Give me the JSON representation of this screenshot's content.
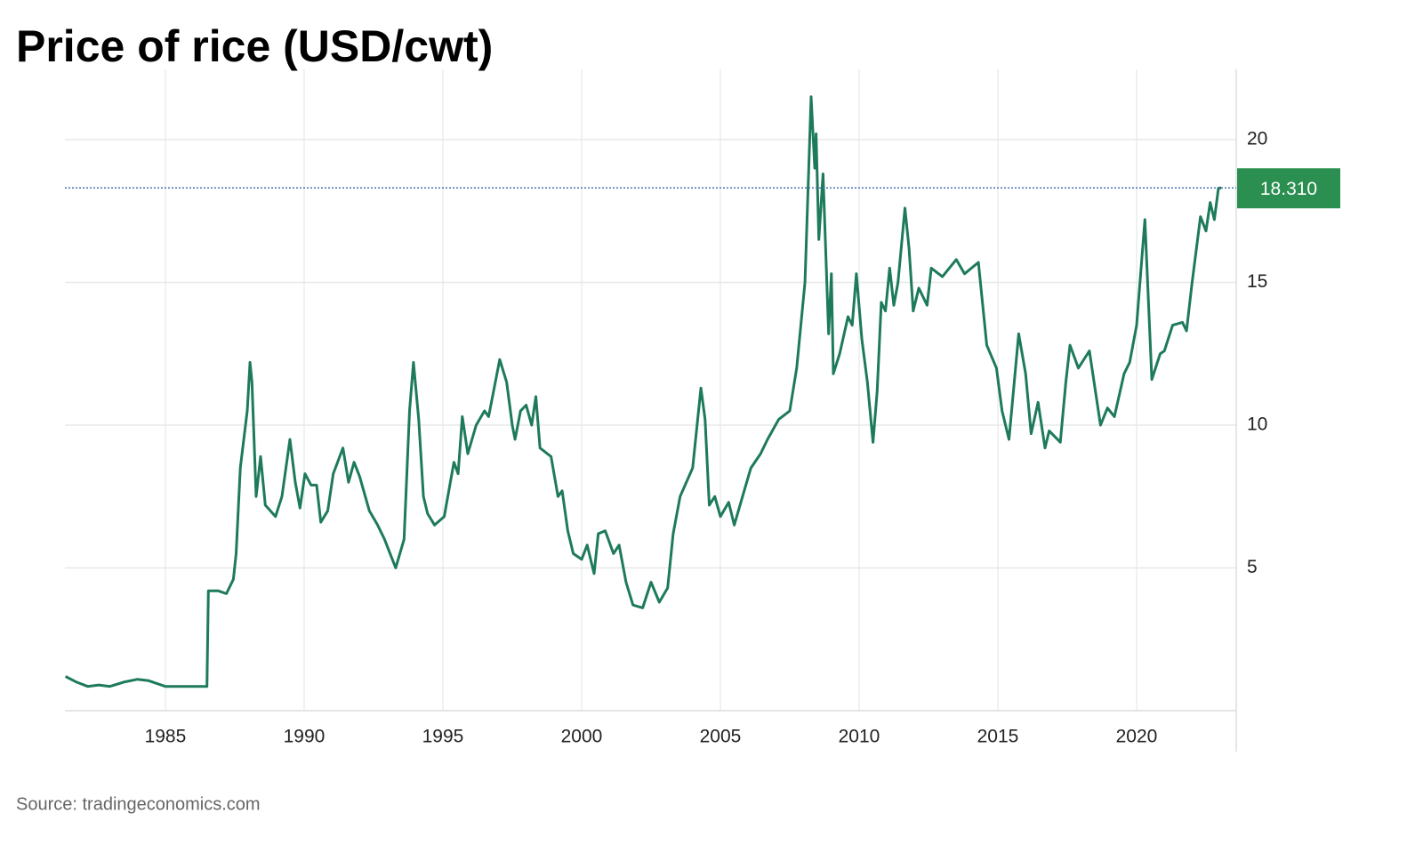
{
  "chart_data": {
    "type": "line",
    "title": "Price of rice (USD/cwt)",
    "source": "Source: tradingeconomics.com",
    "x": [
      1981.4,
      1981.8,
      1982.2,
      1982.6,
      1983.0,
      1983.5,
      1984.0,
      1984.4,
      1985.0,
      1986.5,
      1986.55,
      1986.9,
      1987.2,
      1987.45,
      1987.55,
      1987.7,
      1987.95,
      1988.05,
      1988.12,
      1988.27,
      1988.43,
      1988.6,
      1988.97,
      1989.2,
      1989.49,
      1989.68,
      1989.85,
      1990.03,
      1990.25,
      1990.45,
      1990.6,
      1990.85,
      1991.05,
      1991.4,
      1991.6,
      1991.8,
      1992.0,
      1992.35,
      1992.65,
      1992.9,
      1993.3,
      1993.6,
      1993.8,
      1993.94,
      1994.13,
      1994.3,
      1994.45,
      1994.7,
      1995.05,
      1995.4,
      1995.55,
      1995.7,
      1995.9,
      1996.2,
      1996.5,
      1996.65,
      1997.05,
      1997.3,
      1997.5,
      1997.6,
      1997.8,
      1998.0,
      1998.2,
      1998.35,
      1998.5,
      1998.9,
      1999.15,
      1999.3,
      1999.5,
      1999.7,
      2000.0,
      2000.2,
      2000.45,
      2000.6,
      2000.85,
      2001.15,
      2001.35,
      2001.6,
      2001.85,
      2002.2,
      2002.5,
      2002.8,
      2003.1,
      2003.3,
      2003.55,
      2004.0,
      2004.3,
      2004.45,
      2004.6,
      2004.8,
      2005.0,
      2005.3,
      2005.5,
      2005.8,
      2006.1,
      2006.45,
      2006.7,
      2007.1,
      2007.5,
      2007.75,
      2008.05,
      2008.27,
      2008.4,
      2008.45,
      2008.55,
      2008.7,
      2008.9,
      2009.0,
      2009.07,
      2009.3,
      2009.6,
      2009.75,
      2009.9,
      2010.1,
      2010.3,
      2010.5,
      2010.65,
      2010.8,
      2010.95,
      2011.1,
      2011.25,
      2011.4,
      2011.65,
      2011.8,
      2011.95,
      2012.15,
      2012.45,
      2012.6,
      2013.0,
      2013.5,
      2013.8,
      2014.3,
      2014.6,
      2014.95,
      2015.15,
      2015.4,
      2015.75,
      2016.0,
      2016.2,
      2016.45,
      2016.7,
      2016.85,
      2017.25,
      2017.45,
      2017.6,
      2017.9,
      2018.3,
      2018.7,
      2018.95,
      2019.2,
      2019.55,
      2019.75,
      2020.0,
      2020.3,
      2020.55,
      2020.85,
      2021.0,
      2021.3,
      2021.65,
      2021.8,
      2022.0,
      2022.3,
      2022.5,
      2022.65,
      2022.8,
      2022.95,
      2023.05
    ],
    "series": [
      {
        "color": "#1d7a5a",
        "values": [
          1.2,
          1.0,
          0.85,
          0.9,
          0.85,
          1.0,
          1.1,
          1.05,
          0.85,
          0.85,
          4.2,
          4.2,
          4.1,
          4.6,
          5.5,
          8.5,
          10.5,
          12.2,
          11.5,
          7.5,
          8.9,
          7.2,
          6.8,
          7.5,
          9.5,
          8.0,
          7.1,
          8.3,
          7.9,
          7.9,
          6.6,
          7.0,
          8.3,
          9.2,
          8.0,
          8.7,
          8.2,
          7.0,
          6.5,
          6.0,
          5.0,
          6.0,
          10.5,
          12.2,
          10.2,
          7.5,
          6.9,
          6.5,
          6.8,
          8.7,
          8.3,
          10.3,
          9.0,
          10.0,
          10.5,
          10.3,
          12.3,
          11.5,
          10.0,
          9.5,
          10.5,
          10.7,
          10.0,
          11.0,
          9.2,
          8.9,
          7.5,
          7.7,
          6.3,
          5.5,
          5.3,
          5.8,
          4.8,
          6.2,
          6.3,
          5.5,
          5.8,
          4.5,
          3.7,
          3.6,
          4.5,
          3.8,
          4.3,
          6.2,
          7.5,
          8.5,
          11.3,
          10.2,
          7.2,
          7.5,
          6.8,
          7.3,
          6.5,
          7.5,
          8.5,
          9.0,
          9.5,
          10.2,
          10.5,
          12.0,
          15.0,
          21.5,
          19.0,
          20.2,
          16.5,
          18.8,
          13.2,
          15.3,
          11.8,
          12.5,
          13.8,
          13.5,
          15.3,
          13.0,
          11.5,
          9.4,
          11.2,
          14.3,
          14.0,
          15.5,
          14.2,
          15.0,
          17.6,
          16.2,
          14.0,
          14.8,
          14.2,
          15.5,
          15.2,
          15.8,
          15.3,
          15.7,
          12.8,
          12.0,
          10.5,
          9.5,
          13.2,
          11.8,
          9.7,
          10.8,
          9.2,
          9.8,
          9.4,
          11.5,
          12.8,
          12.0,
          12.6,
          10.0,
          10.6,
          10.3,
          11.8,
          12.2,
          13.5,
          17.2,
          11.6,
          12.5,
          12.6,
          13.5,
          13.6,
          13.3,
          15.0,
          17.3,
          16.8,
          17.8,
          17.2,
          18.3,
          18.31
        ]
      }
    ],
    "xlim": [
      1981.38,
      2023.59
    ],
    "xticks": [
      1985,
      1990,
      1995,
      2000,
      2005,
      2010,
      2015,
      2020
    ],
    "ylim": [
      0,
      22.46
    ],
    "yticks": [
      5,
      10,
      15,
      20
    ],
    "grid": true,
    "last_value": {
      "value": 18.31,
      "label": "18.310"
    },
    "last_value_color": "#2a8f50"
  }
}
